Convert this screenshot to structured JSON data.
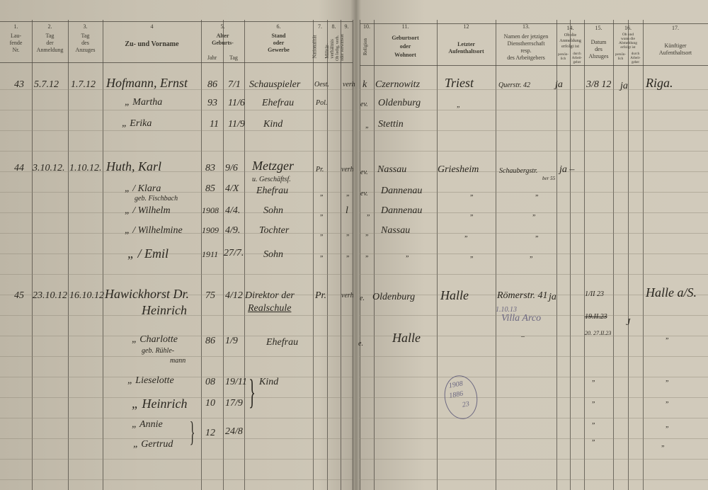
{
  "header": {
    "columns": [
      {
        "no": "1.",
        "label": "Lau-\nfende\nNr."
      },
      {
        "no": "2.",
        "label": "Tag\nder\nAnmeldung"
      },
      {
        "no": "3.",
        "label": "Tag\ndes\nAnzuges"
      },
      {
        "no": "4",
        "label": "Zu- und Vorname"
      },
      {
        "no": "5.",
        "label": "Alter\nGeburts-",
        "sub": [
          "Jahr",
          "Tag"
        ]
      },
      {
        "no": "6.",
        "label": "Stand\noder\nGewerbe"
      },
      {
        "no": "7.",
        "label": "Nationalität"
      },
      {
        "no": "8.",
        "label": "Militär-\nverhältnis"
      },
      {
        "no": "9.",
        "label": "Ob ledig, verh.\noder verwittwet"
      },
      {
        "no": "10.",
        "label": "Religion"
      },
      {
        "no": "11.",
        "label": "Geburtsort\noder\nWohnort"
      },
      {
        "no": "12",
        "label": "Letzter\nAufenthaltsort"
      },
      {
        "no": "13.",
        "label": "Namen der jetzigen\nDienstherrschaft\nresp.\ndes Arbeitgebers"
      },
      {
        "no": "14.",
        "label": "Ob die\nAnmeldung\nerfolgt ist",
        "sub": [
          "persön-\nlich",
          "durch\nArbeit-\ngeber"
        ]
      },
      {
        "no": "15.",
        "label": "Datum\ndes\nAbzuges"
      },
      {
        "no": "16.",
        "label": "Ob und\nwann die\nAbmeldung\nerfolgt ist",
        "sub": [
          "persön-\nlich",
          "durch\nArbeit-\ngeber"
        ]
      },
      {
        "no": "17.",
        "label": "Künftiger\nAufenthaltsort"
      }
    ]
  },
  "entries": [
    {
      "nr": "43",
      "anmeldung": "5.7.12",
      "anzug": "1.7.12",
      "name": "Hofmann, Ernst",
      "jahr": "86",
      "tag": "7/1",
      "stand": "Schauspieler",
      "nat": "Oest.",
      "verh": "verh",
      "rel": "k",
      "geburtsort": "Czernowitz",
      "letzter": "Triest",
      "arbeitgeber": "Querstr. 42",
      "anm": "ja",
      "abzug": "3/8 12",
      "abm": "ja",
      "kuenftig": "Riga.",
      "members": [
        {
          "name": "„ Martha",
          "jahr": "93",
          "tag": "11/6",
          "stand": "Ehefrau",
          "nat": "Pol.",
          "rel": "ev.",
          "geburtsort": "Oldenburg",
          "letzter": "„"
        },
        {
          "name": "„ Erika",
          "jahr": "11",
          "tag": "11/9",
          "stand": "Kind",
          "rel": "„",
          "geburtsort": "Stettin"
        }
      ]
    },
    {
      "nr": "44",
      "anmeldung": "3.10.12.",
      "anzug": "1.10.12.",
      "name": "Huth, Karl",
      "jahr": "83",
      "tag": "9/6",
      "stand": "Metzger",
      "stand2": "u. Geschäftsf.",
      "nat": "Pr.",
      "verh": "verh",
      "rel": "ev.",
      "geburtsort": "Nassau",
      "letzter": "Griesheim",
      "arbeitgeber": "Schaubergstr.",
      "arbeitgeber2": "ber 55",
      "anm": "ja –",
      "members": [
        {
          "name": "„ / Klara",
          "name2": "geb. Fischbach",
          "jahr": "85",
          "tag": "4/X",
          "stand": "Ehefrau",
          "nat": "„",
          "verh": "„",
          "rel": "ev.",
          "geburtsort": "Dannenau",
          "letzter": "„",
          "arbeitgeber": "„"
        },
        {
          "name": "„ / Wilhelm",
          "jahr": "1908",
          "tag": "4/4.",
          "stand": "Sohn",
          "nat": "„",
          "verh": "l",
          "rel": "„",
          "geburtsort": "Dannenau",
          "letzter": "„",
          "arbeitgeber": "„"
        },
        {
          "name": "„ / Wilhelmine",
          "jahr": "1909",
          "tag": "4/9.",
          "stand": "Tochter",
          "nat": "„",
          "verh": "„",
          "rel": "„",
          "geburtsort": "Nassau",
          "letzter": "„",
          "arbeitgeber": "„"
        },
        {
          "name": "„ / Emil",
          "jahr": "1911",
          "tag": "27/7.",
          "stand": "Sohn",
          "nat": "„",
          "verh": "„",
          "rel": "„",
          "geburtsort": "„",
          "letzter": "„",
          "arbeitgeber": "„"
        }
      ]
    },
    {
      "nr": "45",
      "anmeldung": "23.10.12",
      "anzug": "16.10.12",
      "name": "Hawickhorst Dr.",
      "name2": "Heinrich",
      "jahr": "75",
      "tag": "4/12",
      "stand": "Direktor der",
      "stand2": "Realschule",
      "nat": "Pr.",
      "verh": "verh",
      "rel": "e.",
      "geburtsort": "Oldenburg",
      "letzter": "Halle",
      "arbeitgeber": "Römerstr. 41",
      "arbeitgeber_note": "1.10.13",
      "arbeitgeber_note2": "Villa Arco",
      "anm": "ja",
      "abzug": "1/II 23",
      "abzug2": "19.II.23",
      "abzug3": "20. 27.II.23",
      "abm": "J",
      "kuenftig": "Halle a/S.",
      "members": [
        {
          "name": "„ Charlotte",
          "name2": "geb. Rühle-",
          "name3": "mann",
          "jahr": "86",
          "tag": "1/9",
          "stand": "Ehefrau",
          "rel": "e.",
          "geburtsort": "Halle",
          "arbeitgeber": "–",
          "kuenftig": "„"
        },
        {
          "name": "„ Lieselotte",
          "jahr": "08",
          "tag": "19/11",
          "stand": "Kind",
          "abzug": "„",
          "kuenftig": "„"
        },
        {
          "name": "„ Heinrich",
          "jahr": "10",
          "tag": "17/9",
          "abzug": "„",
          "kuenftig": "„"
        },
        {
          "name": "„ Annie",
          "jahr": "12",
          "tag": "24/8",
          "abzug": "„",
          "kuenftig": "„"
        },
        {
          "name": "„ Gertrud",
          "abzug": "„",
          "kuenftig": "„"
        }
      ]
    }
  ],
  "stamp": {
    "lines": [
      "1908",
      "1886",
      "23"
    ]
  }
}
